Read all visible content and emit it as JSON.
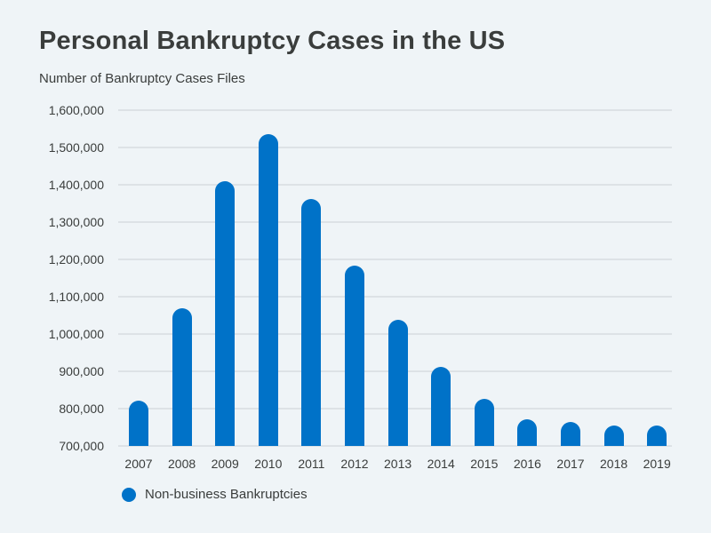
{
  "header": {
    "title": "Personal Bankruptcy Cases in the US",
    "subtitle": "Number of Bankruptcy Cases Files"
  },
  "legend": {
    "items": [
      {
        "label": "Non-business Bankruptcies",
        "color": "#0072c8"
      }
    ]
  },
  "y_ticks": [
    "1,600,000",
    "1,500,000",
    "1,400,000",
    "1,300,000",
    "1,200,000",
    "1,100,000",
    "1,000,000",
    "900,000",
    "800,000",
    "700,000"
  ],
  "chart_data": {
    "type": "bar",
    "title": "Personal Bankruptcy Cases in the US",
    "subtitle": "Number of Bankruptcy Cases Files",
    "xlabel": "",
    "ylabel": "Number of Bankruptcy Cases Files",
    "categories": [
      "2007",
      "2008",
      "2009",
      "2010",
      "2011",
      "2012",
      "2013",
      "2014",
      "2015",
      "2016",
      "2017",
      "2018",
      "2019"
    ],
    "series": [
      {
        "name": "Non-business Bankruptcies",
        "color": "#0072c8",
        "values": [
          822000,
          1070000,
          1410000,
          1535000,
          1362000,
          1183000,
          1038000,
          912000,
          826000,
          771000,
          765000,
          755000,
          755000
        ]
      }
    ],
    "ylim": [
      700000,
      1600000
    ],
    "y_tick_step": 100000,
    "grid": true,
    "legend_position": "bottom-left"
  }
}
